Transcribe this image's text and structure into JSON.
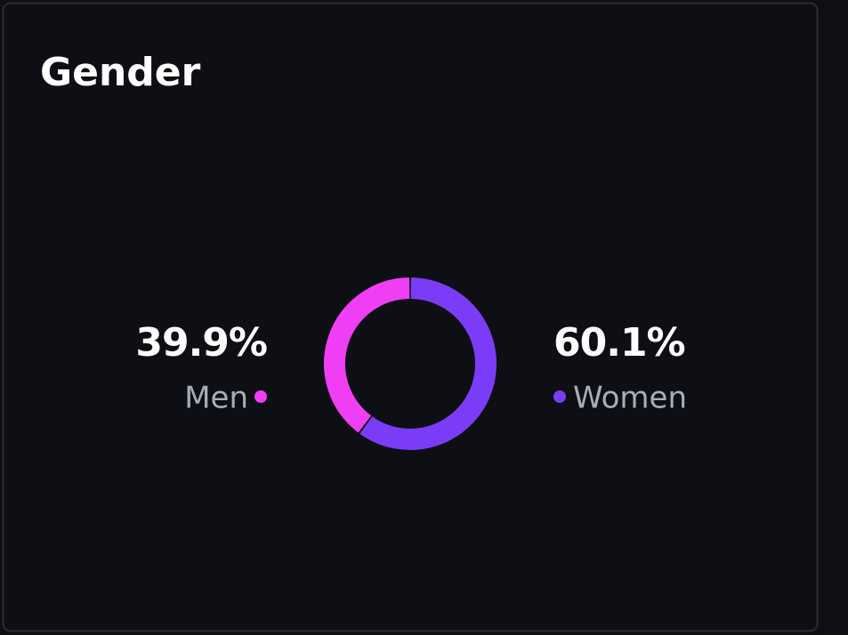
{
  "chart_data": {
    "type": "donut",
    "title": "Gender",
    "categories": [
      "Men",
      "Women"
    ],
    "values": [
      39.9,
      60.1
    ],
    "value_labels": [
      "39.9%",
      "60.1%"
    ],
    "colors": [
      "#f03ef5",
      "#7b3cf7"
    ]
  }
}
